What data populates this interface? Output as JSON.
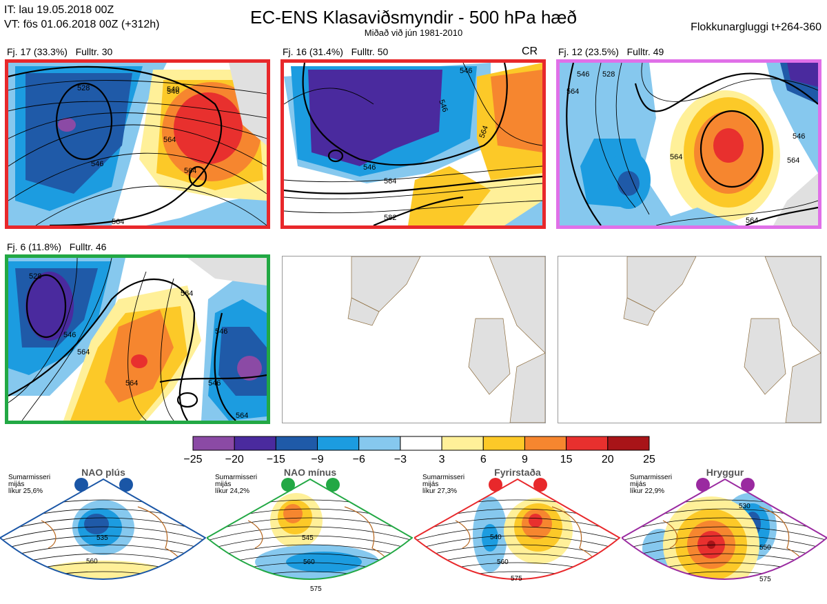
{
  "header": {
    "it": "IT: lau 19.05.2018 00Z",
    "vt": "VT: fös 01.06.2018 00Z  (+312h)",
    "title": "EC-ENS Klasaviðsmyndir - 500 hPa hæð",
    "subtitle": "Miðað við jún 1981-2010",
    "window": "Flokkunargluggi t+264-360"
  },
  "panels": [
    {
      "label": "Fj. 17 (33.3%)   Fulltr. 30",
      "frame": "#e8282b",
      "cr": "",
      "contours": [
        "540",
        "528",
        "546",
        "564",
        "564",
        "546",
        "564"
      ]
    },
    {
      "label": "Fj. 16 (31.4%)   Fulltr. 50",
      "frame": "#e8282b",
      "cr": "CR",
      "contours": [
        "546",
        "546",
        "564",
        "546",
        "564",
        "582"
      ]
    },
    {
      "label": "Fj. 12 (23.5%)   Fulltr. 49",
      "frame": "#e070e8",
      "cr": "",
      "contours": [
        "546",
        "528",
        "564",
        "564",
        "546",
        "564",
        "564"
      ]
    },
    {
      "label": "Fj. 6 (11.8%)   Fulltr. 46",
      "frame": "#22a844",
      "cr": "",
      "contours": [
        "528",
        "546",
        "564",
        "564",
        "564",
        "546",
        "546",
        "564"
      ]
    }
  ],
  "colorbar": {
    "ticks": [
      "-25",
      "-20",
      "-15",
      "-9",
      "-6",
      "-3",
      "3",
      "6",
      "9",
      "15",
      "20",
      "25"
    ],
    "colors": [
      "#8b4aa5",
      "#4a2a9e",
      "#1f5aa8",
      "#1c9ce0",
      "#86c8ee",
      "#ffffff",
      "#fff099",
      "#fcc928",
      "#f6862f",
      "#e8302e",
      "#a81418"
    ]
  },
  "regimes": [
    {
      "title": "NAO plús",
      "info": "Sumarmisseri\nmijás\nlíkur 25,6%",
      "color": "#1a56a6",
      "contours": [
        "535",
        "560"
      ]
    },
    {
      "title": "NAO mínus",
      "info": "Sumarmisseri\nmijás\nlíkur 24,2%",
      "color": "#22a844",
      "contours": [
        "545",
        "560",
        "575"
      ]
    },
    {
      "title": "Fyrirstaða",
      "info": "Sumarmisseri\nmijás\nlíkur 27,3%",
      "color": "#e8282b",
      "contours": [
        "540",
        "560",
        "575"
      ]
    },
    {
      "title": "Hryggur",
      "info": "Sumarmisseri\nmijás\nlíkur 22,9%",
      "color": "#9a2aa0",
      "contours": [
        "530",
        "550",
        "575"
      ]
    }
  ]
}
